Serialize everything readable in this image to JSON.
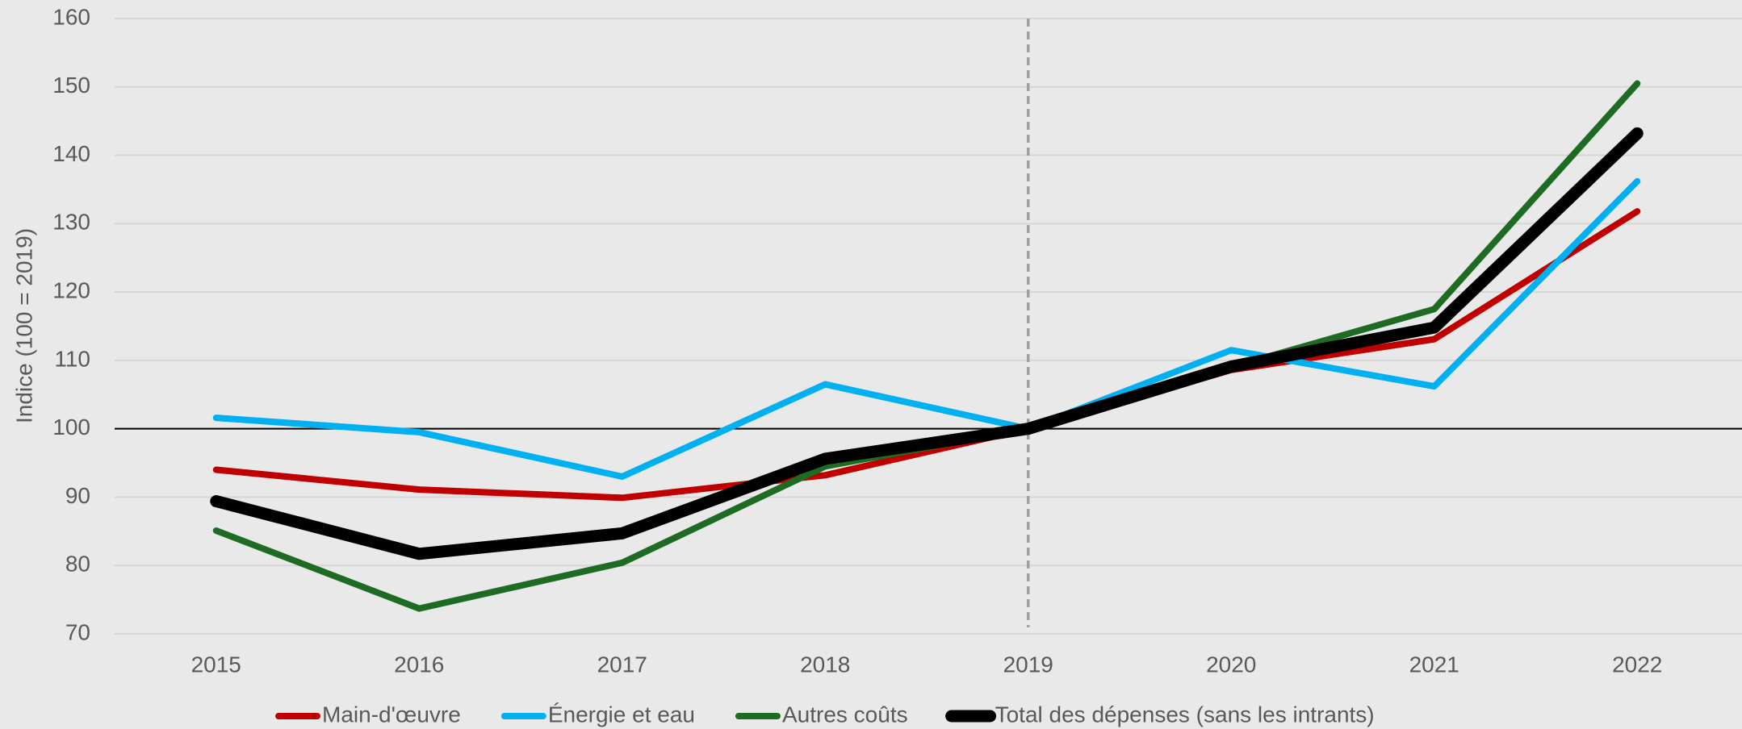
{
  "chart_data": {
    "type": "line",
    "y_label": "Indice (100 = 2019)",
    "categories": [
      "2015",
      "2016",
      "2017",
      "2018",
      "2019",
      "2020",
      "2021",
      "2022"
    ],
    "series": [
      {
        "name": "Main-d'œuvre",
        "color": "#c00000",
        "linewidth": 8,
        "values": [
          94.0,
          91.1,
          89.9,
          93.2,
          100,
          108.6,
          113.1,
          131.8
        ]
      },
      {
        "name": "Énergie et eau",
        "color": "#00b0f0",
        "linewidth": 8,
        "values": [
          101.6,
          99.5,
          93.0,
          106.5,
          100,
          111.5,
          106.2,
          136.2
        ]
      },
      {
        "name": "Autres coûts",
        "color": "#1e6b24",
        "linewidth": 8,
        "values": [
          85.1,
          73.7,
          80.4,
          94.5,
          100,
          109.0,
          117.5,
          150.5
        ]
      },
      {
        "name": "Total des dépenses (sans les intrants)",
        "color": "#000000",
        "linewidth": 15,
        "values": [
          89.4,
          81.7,
          84.7,
          95.6,
          100,
          109.1,
          114.8,
          143.2
        ]
      }
    ],
    "ylim": [
      70,
      160
    ],
    "yticks": [
      70,
      80,
      90,
      100,
      110,
      120,
      130,
      140,
      150,
      160
    ],
    "grid": true,
    "hline": 100,
    "vline": "2019",
    "legend": "bottom"
  }
}
